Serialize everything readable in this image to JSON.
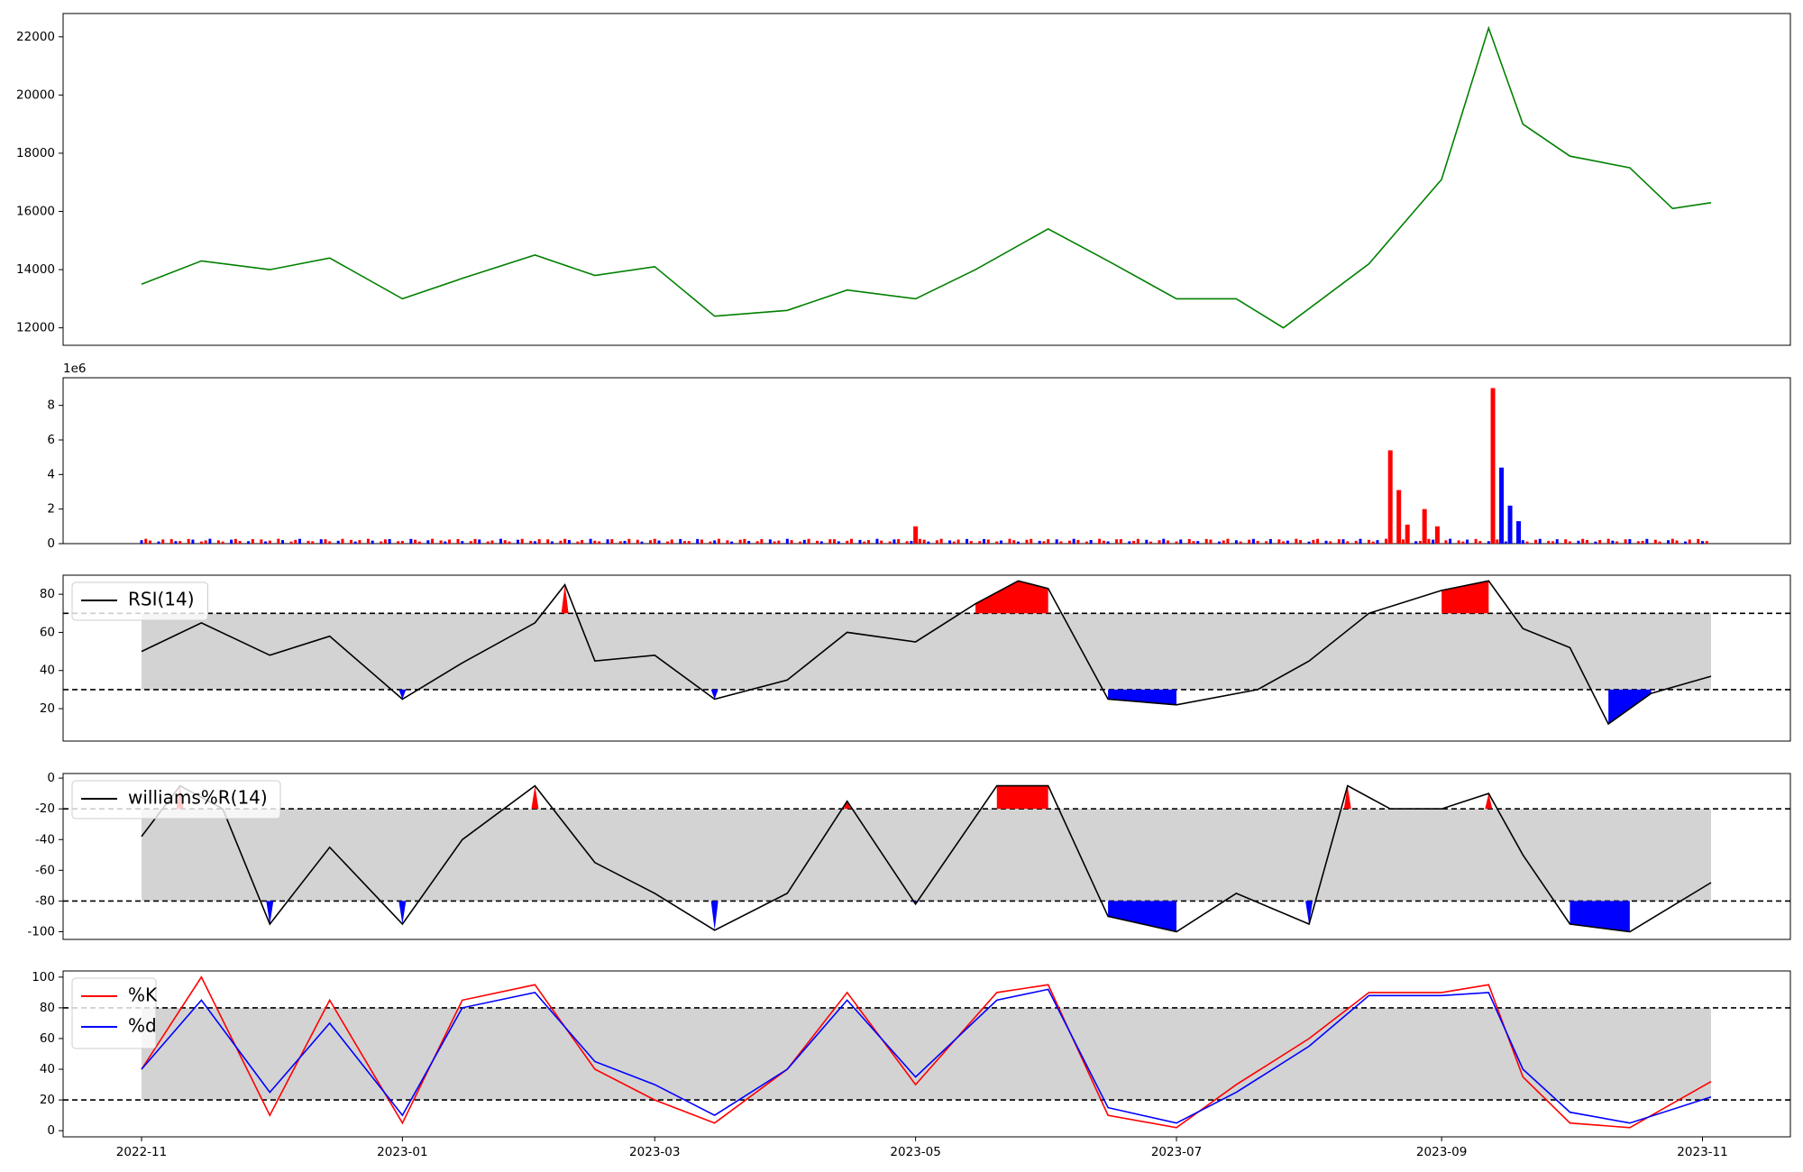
{
  "chart_data": [
    {
      "type": "line",
      "panel": "price",
      "color": "#008000",
      "ylim": [
        11400,
        22800
      ],
      "yticks": [
        12000,
        14000,
        16000,
        18000,
        20000,
        22000
      ],
      "x": [
        "2022-11-01",
        "2022-11-15",
        "2022-12-01",
        "2022-12-15",
        "2023-01-01",
        "2023-01-15",
        "2023-02-01",
        "2023-02-15",
        "2023-03-01",
        "2023-03-15",
        "2023-04-01",
        "2023-04-15",
        "2023-05-01",
        "2023-05-15",
        "2023-06-01",
        "2023-06-15",
        "2023-07-01",
        "2023-07-15",
        "2023-07-26",
        "2023-08-15",
        "2023-09-01",
        "2023-09-12",
        "2023-09-20",
        "2023-10-01",
        "2023-10-15",
        "2023-10-25",
        "2023-11-03"
      ],
      "values": [
        13500,
        14300,
        14000,
        14400,
        13000,
        13700,
        14500,
        13800,
        14100,
        12400,
        12600,
        13300,
        13000,
        14000,
        15400,
        14300,
        13000,
        13000,
        12000,
        14200,
        17100,
        22300,
        19000,
        17900,
        17500,
        16100,
        16300
      ]
    },
    {
      "type": "bar",
      "panel": "volume",
      "offset_text": "1e6",
      "ylim": [
        0,
        9600000
      ],
      "yticks": [
        0,
        2,
        4,
        6,
        8
      ],
      "up_color": "#ff0000",
      "down_color": "#0000ff",
      "bars": [
        {
          "x": "2023-05-01",
          "value": 1000000,
          "color": "red"
        },
        {
          "x": "2023-08-20",
          "value": 5400000,
          "color": "red"
        },
        {
          "x": "2023-08-22",
          "value": 3100000,
          "color": "red"
        },
        {
          "x": "2023-08-24",
          "value": 1100000,
          "color": "red"
        },
        {
          "x": "2023-08-28",
          "value": 2000000,
          "color": "red"
        },
        {
          "x": "2023-08-31",
          "value": 1000000,
          "color": "red"
        },
        {
          "x": "2023-09-13",
          "value": 9000000,
          "color": "red"
        },
        {
          "x": "2023-09-15",
          "value": 4400000,
          "color": "blue"
        },
        {
          "x": "2023-09-17",
          "value": 2200000,
          "color": "blue"
        },
        {
          "x": "2023-09-19",
          "value": 1300000,
          "color": "blue"
        }
      ],
      "base_level": 200000
    },
    {
      "type": "line",
      "panel": "rsi",
      "series": [
        {
          "name": "RSI(14)",
          "color": "#000000"
        }
      ],
      "ylim": [
        3,
        90
      ],
      "yticks": [
        20,
        40,
        60,
        80
      ],
      "upper": 70,
      "lower": 30,
      "x": [
        "2022-11-01",
        "2022-11-15",
        "2022-12-01",
        "2022-12-15",
        "2023-01-01",
        "2023-01-15",
        "2023-02-01",
        "2023-02-08",
        "2023-02-15",
        "2023-03-01",
        "2023-03-15",
        "2023-04-01",
        "2023-04-15",
        "2023-05-01",
        "2023-05-15",
        "2023-05-25",
        "2023-06-01",
        "2023-06-15",
        "2023-07-01",
        "2023-07-20",
        "2023-08-01",
        "2023-08-15",
        "2023-09-01",
        "2023-09-12",
        "2023-09-20",
        "2023-10-01",
        "2023-10-10",
        "2023-10-20",
        "2023-11-03"
      ],
      "values": [
        50,
        65,
        48,
        58,
        25,
        44,
        65,
        85,
        45,
        48,
        25,
        35,
        60,
        55,
        75,
        87,
        83,
        25,
        22,
        30,
        45,
        70,
        82,
        87,
        62,
        52,
        12,
        28,
        37
      ]
    },
    {
      "type": "line",
      "panel": "williams",
      "series": [
        {
          "name": "williams%R(14)",
          "color": "#000000"
        }
      ],
      "ylim": [
        -105,
        3
      ],
      "yticks": [
        -100,
        -80,
        -60,
        -40,
        -20,
        0
      ],
      "upper": -20,
      "lower": -80,
      "x": [
        "2022-11-01",
        "2022-11-10",
        "2022-11-20",
        "2022-12-01",
        "2022-12-15",
        "2023-01-01",
        "2023-01-15",
        "2023-02-01",
        "2023-02-15",
        "2023-03-01",
        "2023-03-15",
        "2023-04-01",
        "2023-04-15",
        "2023-05-01",
        "2023-05-20",
        "2023-06-01",
        "2023-06-15",
        "2023-07-01",
        "2023-07-15",
        "2023-08-01",
        "2023-08-10",
        "2023-08-20",
        "2023-09-01",
        "2023-09-12",
        "2023-09-20",
        "2023-10-01",
        "2023-10-15",
        "2023-11-03"
      ],
      "values": [
        -38,
        -5,
        -20,
        -95,
        -45,
        -95,
        -40,
        -5,
        -55,
        -75,
        -99,
        -75,
        -15,
        -82,
        -5,
        -5,
        -90,
        -100,
        -75,
        -95,
        -5,
        -20,
        -20,
        -10,
        -50,
        -95,
        -100,
        -68
      ]
    },
    {
      "type": "line",
      "panel": "stochastic",
      "series": [
        {
          "name": "%K",
          "color": "#ff0000"
        },
        {
          "name": "%d",
          "color": "#0000ff"
        }
      ],
      "ylim": [
        -4,
        104
      ],
      "yticks": [
        0,
        20,
        40,
        60,
        80,
        100
      ],
      "upper": 80,
      "lower": 20,
      "x": [
        "2022-11-01",
        "2022-11-15",
        "2022-12-01",
        "2022-12-15",
        "2023-01-01",
        "2023-01-15",
        "2023-02-01",
        "2023-02-15",
        "2023-03-01",
        "2023-03-15",
        "2023-04-01",
        "2023-04-15",
        "2023-05-01",
        "2023-05-20",
        "2023-06-01",
        "2023-06-15",
        "2023-07-01",
        "2023-07-15",
        "2023-08-01",
        "2023-08-15",
        "2023-09-01",
        "2023-09-12",
        "2023-09-20",
        "2023-10-01",
        "2023-10-15",
        "2023-11-03"
      ],
      "k_values": [
        40,
        100,
        10,
        85,
        5,
        85,
        95,
        40,
        20,
        5,
        40,
        90,
        30,
        90,
        95,
        10,
        2,
        30,
        60,
        90,
        90,
        95,
        35,
        5,
        2,
        32
      ],
      "d_values": [
        40,
        85,
        25,
        70,
        10,
        80,
        90,
        45,
        30,
        10,
        40,
        85,
        35,
        85,
        92,
        15,
        5,
        25,
        55,
        88,
        88,
        90,
        40,
        12,
        5,
        22
      ]
    }
  ],
  "x_axis": {
    "ticks": [
      "2022-11",
      "2023-01",
      "2023-03",
      "2023-05",
      "2023-07",
      "2023-09",
      "2023-11"
    ]
  }
}
